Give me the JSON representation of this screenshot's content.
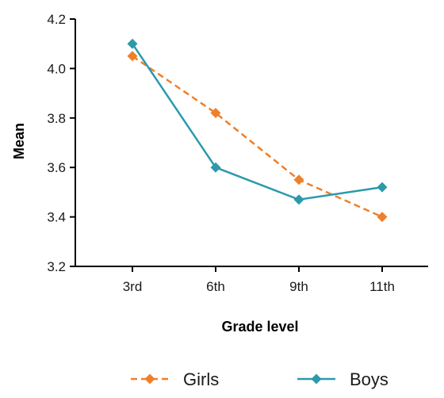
{
  "chart_data": {
    "type": "line",
    "categories": [
      "3rd",
      "6th",
      "9th",
      "11th"
    ],
    "series": [
      {
        "name": "Girls",
        "values": [
          4.05,
          3.82,
          3.55,
          3.4
        ],
        "color": "#f07f2a",
        "dash": true,
        "marker": "diamond"
      },
      {
        "name": "Boys",
        "values": [
          4.1,
          3.6,
          3.47,
          3.52
        ],
        "color": "#2b9aab",
        "dash": false,
        "marker": "diamond"
      }
    ],
    "title": "",
    "xlabel": "Grade level",
    "ylabel": "Mean",
    "ylim": [
      3.2,
      4.2
    ],
    "yticks": [
      "3.2",
      "3.4",
      "3.6",
      "3.8",
      "4.0",
      "4.2"
    ],
    "grid": false,
    "legend": "bottom"
  }
}
